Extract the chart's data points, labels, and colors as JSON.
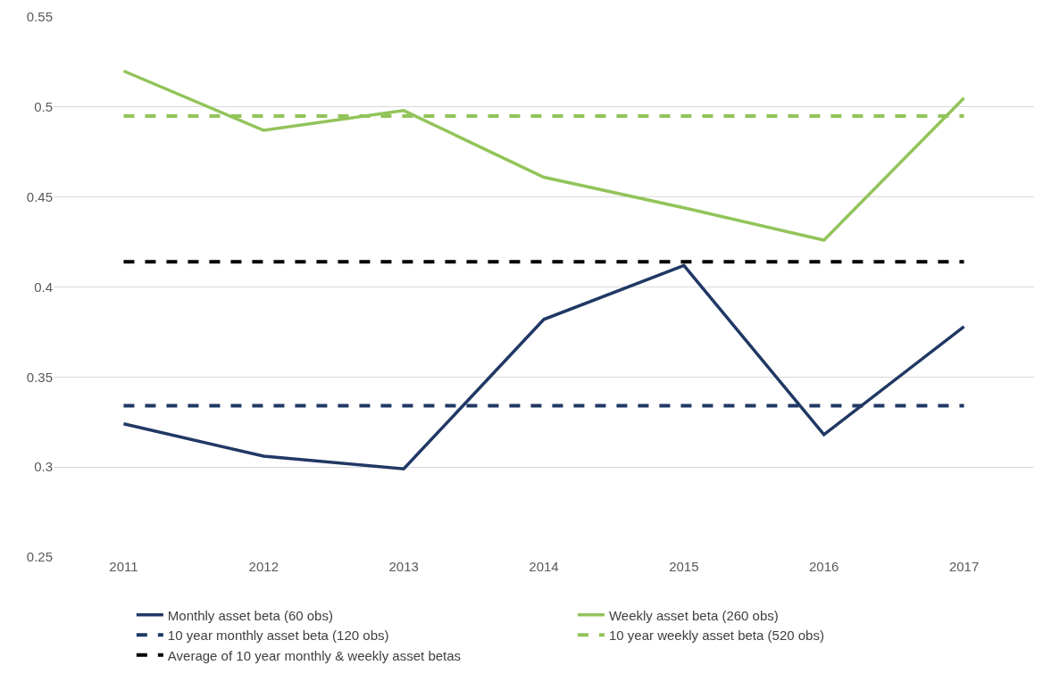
{
  "chart_data": {
    "type": "line",
    "categories": [
      "2011",
      "2012",
      "2013",
      "2014",
      "2015",
      "2016",
      "2017"
    ],
    "series": [
      {
        "name": "Monthly asset beta (60 obs)",
        "color": "#203864",
        "values": [
          0.324,
          0.306,
          0.299,
          0.382,
          0.412,
          0.318,
          0.378
        ]
      },
      {
        "name": "Weekly asset beta (260 obs)",
        "color": "#92c45a",
        "values": [
          0.52,
          0.487,
          0.498,
          0.461,
          0.444,
          0.426,
          0.505
        ]
      },
      {
        "name": "10 year monthly asset beta (120 obs)",
        "color": "#203864",
        "line_style": "dashed",
        "values": [
          0.334,
          0.334,
          0.334,
          0.334,
          0.334,
          0.334,
          0.334
        ]
      },
      {
        "name": "10 year weekly asset beta (520 obs)",
        "color": "#92c45a",
        "line_style": "dashed",
        "values": [
          0.495,
          0.495,
          0.495,
          0.495,
          0.495,
          0.495,
          0.495
        ]
      },
      {
        "name": "Average of 10 year monthly & weekly asset betas",
        "color": "#000000",
        "line_style": "dashed",
        "values": [
          0.414,
          0.414,
          0.414,
          0.414,
          0.414,
          0.414,
          0.414
        ]
      }
    ],
    "ylim": [
      0.25,
      0.55
    ],
    "yticks": [
      0.25,
      0.3,
      0.35,
      0.4,
      0.45,
      0.5,
      0.55
    ],
    "grid": "y",
    "legend": "bottom",
    "line_style": "solid",
    "marker": "none"
  }
}
